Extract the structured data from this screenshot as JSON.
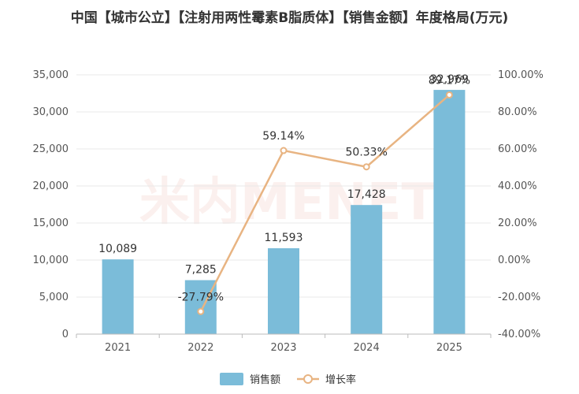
{
  "chart_data": {
    "type": "bar",
    "title": "中国【城市公立】【注射用两性霉素B脂质体】【销售金额】年度格局(万元)",
    "categories": [
      "2021",
      "2022",
      "2023",
      "2024",
      "2025"
    ],
    "series": [
      {
        "name": "销售额",
        "type": "bar",
        "axis": "left",
        "values": [
          10089,
          7285,
          11593,
          17428,
          32969
        ],
        "labels": [
          "10,089",
          "7,285",
          "11,593",
          "17,428",
          "32,969"
        ]
      },
      {
        "name": "增长率",
        "type": "line",
        "axis": "right",
        "values": [
          null,
          -27.79,
          59.14,
          50.33,
          89.17
        ],
        "labels": [
          "",
          "-27.79%",
          "59.14%",
          "50.33%",
          "89.17%"
        ]
      }
    ],
    "y_left": {
      "lim": [
        0,
        35000
      ],
      "ticks": [
        0,
        5000,
        10000,
        15000,
        20000,
        25000,
        30000,
        35000
      ],
      "tick_labels": [
        "0",
        "5,000",
        "10,000",
        "15,000",
        "20,000",
        "25,000",
        "30,000",
        "35,000"
      ]
    },
    "y_right": {
      "lim": [
        -40,
        100
      ],
      "ticks": [
        -40,
        -20,
        0,
        20,
        40,
        60,
        80,
        100
      ],
      "tick_labels": [
        "-40.00%",
        "-20.00%",
        "0.00%",
        "20.00%",
        "40.00%",
        "60.00%",
        "80.00%",
        "100.00%"
      ]
    },
    "grid": true,
    "legend_position": "bottom-center",
    "colors": {
      "bar": "#7bbcd9",
      "line": "#e8b482",
      "grid": "#e8e8e8",
      "axis": "#bbbbbb"
    },
    "watermark": "米内MENET"
  }
}
